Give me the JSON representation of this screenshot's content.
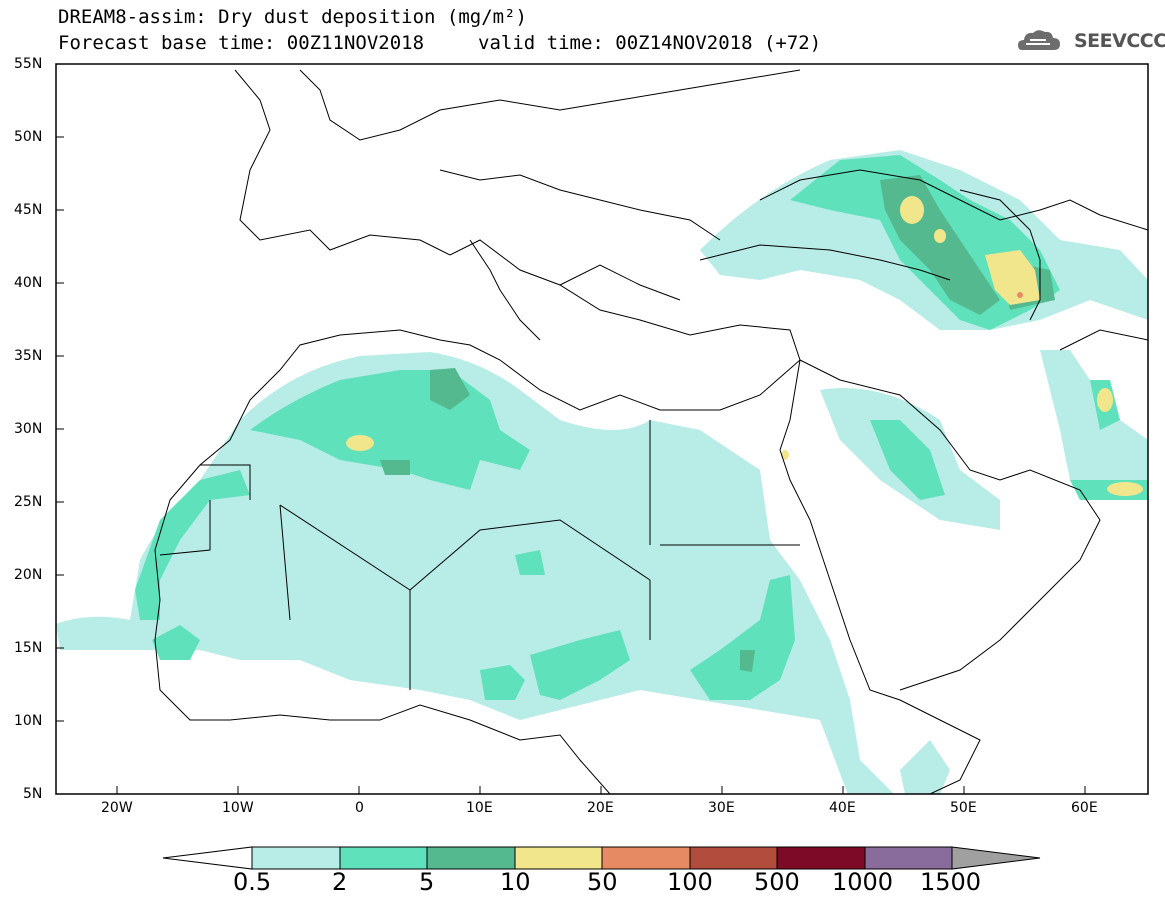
{
  "title": {
    "line1": "DREAM8-assim: Dry dust deposition (mg/m²)",
    "line2": "Forecast base time: 00Z11NOV2018",
    "valid": "valid time: 00Z14NOV2018 (+72)"
  },
  "logo": {
    "text": "SEEVCCC",
    "icon": "cloud-logo-icon"
  },
  "map": {
    "region": "North Africa, Europe, Middle East",
    "lat_range": [
      5,
      55
    ],
    "lon_range": [
      -25,
      65
    ],
    "lat_labels": [
      "55N",
      "50N",
      "45N",
      "40N",
      "35N",
      "30N",
      "25N",
      "20N",
      "15N",
      "10N",
      "5N"
    ],
    "lon_labels": [
      "20W",
      "10W",
      "0",
      "10E",
      "20E",
      "30E",
      "40E",
      "50E",
      "60E"
    ]
  },
  "colorbar": {
    "labels": [
      "0.5",
      "2",
      "5",
      "10",
      "50",
      "100",
      "500",
      "1000",
      "1500"
    ],
    "colors": [
      "#ffffff",
      "#b8ece6",
      "#5fe1bc",
      "#55b990",
      "#f2e68c",
      "#e68a64",
      "#b24c3c",
      "#7d0a27",
      "#8a6c9c",
      "#a0a0a0"
    ]
  },
  "colors": {
    "level1": "#b8ece6",
    "level2": "#5fe1bc",
    "level3": "#55b990",
    "level4": "#f2e68c",
    "level5": "#e68a64"
  }
}
